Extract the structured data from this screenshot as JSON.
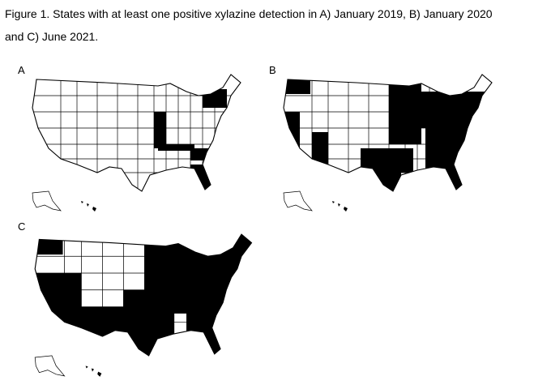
{
  "caption": {
    "lines": [
      "Figure 1. States with at least one positive xylazine detection in A) January 2019, B) January 2020",
      "and C) June 2021."
    ]
  },
  "panels": [
    {
      "label": "A"
    },
    {
      "label": "B"
    },
    {
      "label": "C"
    }
  ]
}
